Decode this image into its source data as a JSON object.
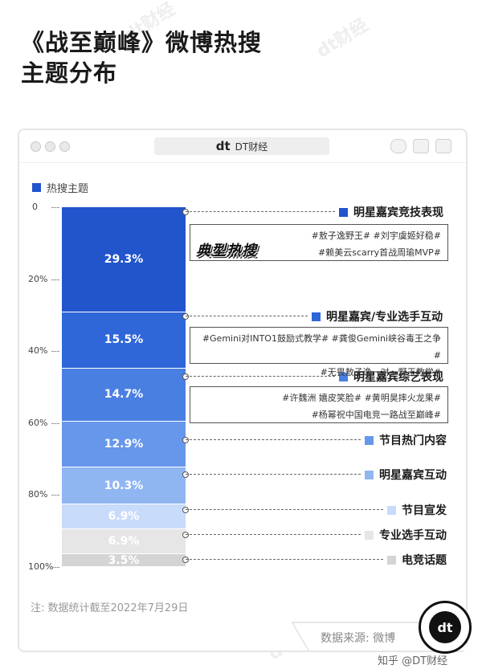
{
  "title": {
    "line1": "《战至巅峰》微博热搜",
    "line2": "主题分布"
  },
  "watermark": "dt财经",
  "window": {
    "brand_mark": "dt",
    "brand_name": "DT财经"
  },
  "colors": {
    "accent": "#2255cc"
  },
  "chart_data": {
    "type": "bar",
    "stacked": true,
    "legend": "热搜主题",
    "legend_position": "top-left",
    "ylim": [
      0,
      100
    ],
    "yticks": [
      "0",
      "20%",
      "40%",
      "60%",
      "80%",
      "100%"
    ],
    "segments": [
      {
        "name": "明星嘉宾竞技表现",
        "value": 29.3,
        "label": "29.3%",
        "color": "#2255cc"
      },
      {
        "name": "明星嘉宾/专业选手互动",
        "value": 15.5,
        "label": "15.5%",
        "color": "#2f66d8"
      },
      {
        "name": "明星嘉宾综艺表现",
        "value": 14.7,
        "label": "14.7%",
        "color": "#4a7fe2"
      },
      {
        "name": "节目热门内容",
        "value": 12.9,
        "label": "12.9%",
        "color": "#6797ea"
      },
      {
        "name": "明星嘉宾互动",
        "value": 10.3,
        "label": "10.3%",
        "color": "#90b6f2"
      },
      {
        "name": "节目宣发",
        "value": 6.9,
        "label": "6.9%",
        "color": "#c9dbfa"
      },
      {
        "name": "专业选手互动",
        "value": 6.9,
        "label": "6.9%",
        "color": "#e6e6e6"
      },
      {
        "name": "电竞话题",
        "value": 3.5,
        "label": "3.5%",
        "color": "#d4d4d4"
      }
    ],
    "annotations": [
      {
        "stamp": "典型热搜",
        "lines": [
          "#敖子逸野王#  #刘宇虞姬好稳#",
          "#赖美云scarry首战周瑜MVP#"
        ]
      },
      {
        "lines": [
          "#Gemini对INTO1鼓励式教学# #龚俊Gemini峡谷毒王之争#",
          "#无畏敖子逸一对一野王教学#"
        ]
      },
      {
        "lines": [
          "#许魏洲 嬉皮笑脸#  #黄明昊摔火龙果#",
          "#杨幂祝中国电竞一路战至巅峰#"
        ]
      }
    ]
  },
  "footer": {
    "note": "注: 数据统计截至2022年7月29日",
    "source": "数据来源: 微博",
    "badge": "dt",
    "credit": "知乎 @DT财经"
  }
}
